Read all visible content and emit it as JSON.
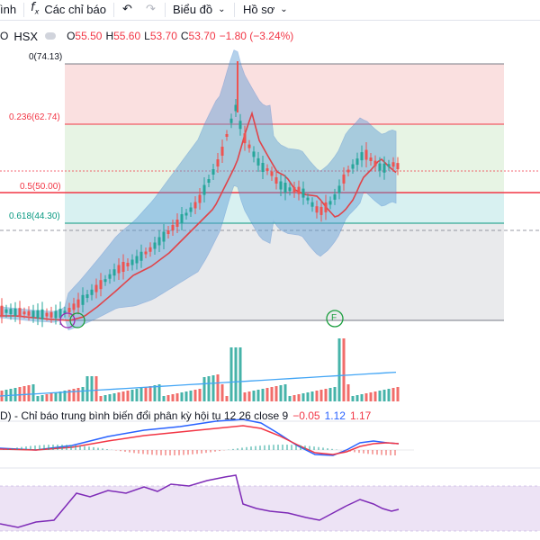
{
  "toolbar": {
    "left_partial": "ình",
    "indicators_label": "Các chỉ báo",
    "chart_label": "Biểu đồ",
    "profile_label": "Hồ sơ"
  },
  "symbol": {
    "prefix": "O",
    "exchange": "HSX",
    "open_key": "O",
    "open": "55.50",
    "high_key": "H",
    "high": "55.60",
    "low_key": "L",
    "low": "53.70",
    "close_key": "C",
    "close": "53.70",
    "change": "−1.80 (−3.24%)"
  },
  "fibonacci": {
    "levels": [
      {
        "label": "0(74.13)",
        "price": 74.13,
        "color": "#787b86"
      },
      {
        "label": "0.236(62.74)",
        "price": 62.74,
        "color": "#f23645"
      },
      {
        "label": "0.5(50.00)",
        "price": 50.0,
        "color": "#f23645"
      },
      {
        "label": "0.618(44.30)",
        "price": 44.3,
        "color": "#089981"
      }
    ]
  },
  "markers": {
    "f_label": "F"
  },
  "macd": {
    "title": "D) - Chỉ báo trung bình biến đổi phân kỳ hội tụ 12 26 close 9",
    "hist": "−0.05",
    "macd": "1.12",
    "signal": "1.17"
  },
  "colors": {
    "up": "#26a69a",
    "down": "#ef5350",
    "bb_fill": "#5b9bd5",
    "ma": "#e0444a",
    "macd_line": "#2962ff",
    "signal_line": "#f23645",
    "rsi_line": "#7e2bb7",
    "rsi_band": "#e9dcf3"
  }
}
